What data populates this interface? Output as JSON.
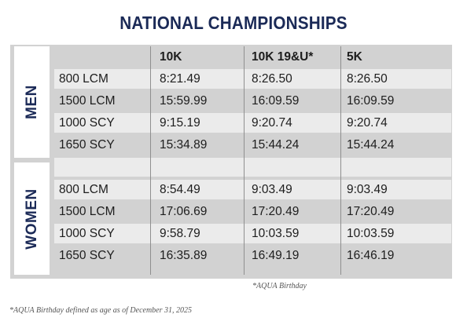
{
  "title": "NATIONAL CHAMPIONSHIPS",
  "men_label": "MEN",
  "women_label": "WOMEN",
  "columns": [
    "",
    "10K",
    "10K 19&U*",
    "5K"
  ],
  "men_rows": [
    [
      "800 LCM",
      "8:21.49",
      "8:26.50",
      "8:26.50"
    ],
    [
      "1500 LCM",
      "15:59.99",
      "16:09.59",
      "16:09.59"
    ],
    [
      "1000 SCY",
      "9:15.19",
      "9:20.74",
      "9:20.74"
    ],
    [
      "1650 SCY",
      "15:34.89",
      "15:44.24",
      "15:44.24"
    ]
  ],
  "women_rows": [
    [
      "800 LCM",
      "8:54.49",
      "9:03.49",
      "9:03.49"
    ],
    [
      "1500 LCM",
      "17:06.69",
      "17:20.49",
      "17:20.49"
    ],
    [
      "1000 SCY",
      "9:58.79",
      "10:03.59",
      "10:03.59"
    ],
    [
      "1650 SCY",
      "16:35.89",
      "16:49.19",
      "16:46.19"
    ]
  ],
  "footnote_short": "*AQUA Birthday",
  "footnote_long": "*AQUA Birthday defined as age as of December 31, 2025"
}
